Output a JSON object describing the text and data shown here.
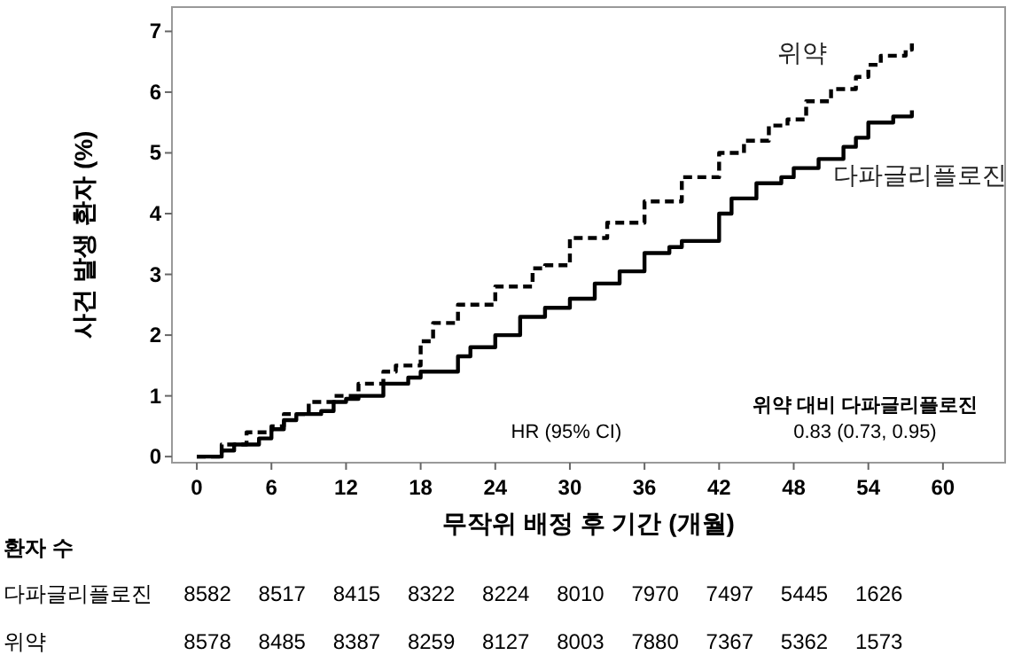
{
  "chart_data": [
    {
      "type": "step",
      "xlabel": "무작위 배정 후 기간 (개월)",
      "ylabel": "사건 발생 환자 (%)",
      "xlim": [
        -2,
        65
      ],
      "ylim": [
        -0.1,
        7.4
      ],
      "xticks": [
        0,
        6,
        12,
        18,
        24,
        30,
        36,
        42,
        48,
        54,
        60
      ],
      "yticks": [
        0,
        1,
        2,
        3,
        4,
        5,
        6,
        7
      ],
      "grid": false,
      "annotations": [
        "HR (95% CI)",
        "위약 대비 다파글리플로진",
        "0.83 (0.73, 0.95)"
      ],
      "series": [
        {
          "name": "위약",
          "color": "#000000",
          "line_style": "dashed",
          "x": [
            0,
            2,
            4,
            6,
            7,
            9,
            11,
            13,
            15,
            16,
            18,
            19,
            21,
            24,
            27,
            28,
            30,
            33,
            36,
            39,
            42,
            44,
            46,
            47.5,
            49,
            51,
            53,
            54,
            55,
            57,
            57.5
          ],
          "values": [
            0,
            0.2,
            0.4,
            0.5,
            0.7,
            0.9,
            1.0,
            1.2,
            1.4,
            1.5,
            1.9,
            2.2,
            2.5,
            2.8,
            3.1,
            3.15,
            3.6,
            3.85,
            4.2,
            4.6,
            5.0,
            5.2,
            5.45,
            5.55,
            5.85,
            6.05,
            6.25,
            6.45,
            6.6,
            6.7,
            6.8
          ]
        },
        {
          "name": "다파글리플로진",
          "color": "#000000",
          "line_style": "solid",
          "x": [
            0,
            2,
            3,
            5,
            6,
            7,
            8,
            10,
            11,
            12,
            13,
            15,
            17,
            18,
            21,
            22,
            24,
            26,
            28,
            30,
            32,
            34,
            36,
            38,
            39,
            42,
            43,
            45,
            47,
            48,
            50,
            52,
            53,
            54,
            56,
            57.5
          ],
          "values": [
            0,
            0.1,
            0.2,
            0.3,
            0.45,
            0.6,
            0.7,
            0.75,
            0.9,
            0.95,
            1.0,
            1.2,
            1.3,
            1.4,
            1.65,
            1.8,
            2.0,
            2.3,
            2.45,
            2.6,
            2.85,
            3.05,
            3.35,
            3.45,
            3.55,
            4.0,
            4.25,
            4.5,
            4.6,
            4.75,
            4.9,
            5.1,
            5.25,
            5.5,
            5.6,
            5.7
          ]
        }
      ]
    },
    {
      "type": "heatmap",
      "title": "환자 수",
      "categories": [
        null,
        null,
        null,
        null,
        null,
        null,
        null,
        null,
        null,
        null
      ],
      "y_categories": [
        "다파글리플로진",
        "위약"
      ],
      "cells": [
        [
          8582,
          8517,
          8415,
          8322,
          8224,
          8010,
          7970,
          7497,
          5445,
          1626
        ],
        [
          8578,
          8485,
          8387,
          8259,
          8127,
          8003,
          7880,
          7367,
          5362,
          1573
        ]
      ],
      "data_labels": true
    }
  ]
}
